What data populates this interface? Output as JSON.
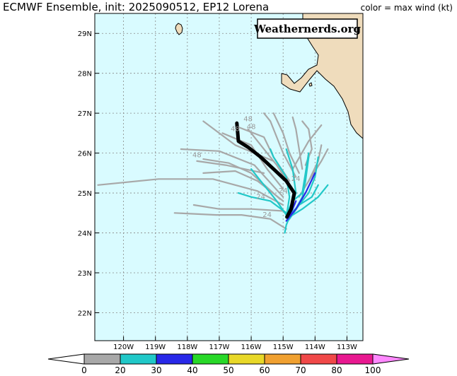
{
  "header": {
    "title": "ECMWF Ensemble, init: 2025090512, EP12 Lorena",
    "legend_note": "color = max wind (kt)"
  },
  "brand": "Weathernerds.org",
  "colors": {
    "ocean": "#d9fbff",
    "land": "#efdcbc",
    "track_mean": "#000000",
    "member_weak": "#a8a8a8",
    "member_ts": "#22c8c8",
    "member_cat1": "#2828e8"
  },
  "map": {
    "lon_range": [
      -120.9,
      -112.5
    ],
    "lat_range": [
      21.3,
      29.5
    ],
    "lon_ticks": [
      {
        "value": -120,
        "label": "120W"
      },
      {
        "value": -119,
        "label": "119W"
      },
      {
        "value": -118,
        "label": "118W"
      },
      {
        "value": -117,
        "label": "117W"
      },
      {
        "value": -116,
        "label": "116W"
      },
      {
        "value": -115,
        "label": "115W"
      },
      {
        "value": -114,
        "label": "114W"
      },
      {
        "value": -113,
        "label": "113W"
      }
    ],
    "lat_ticks": [
      {
        "value": 22,
        "label": "22N"
      },
      {
        "value": 23,
        "label": "23N"
      },
      {
        "value": 24,
        "label": "24N"
      },
      {
        "value": 25,
        "label": "25N"
      },
      {
        "value": 26,
        "label": "26N"
      },
      {
        "value": 27,
        "label": "27N"
      },
      {
        "value": 28,
        "label": "28N"
      },
      {
        "value": 29,
        "label": "29N"
      }
    ],
    "hour_labels": [
      {
        "text": "48",
        "lon": -116.1,
        "lat": 26.8
      },
      {
        "text": "48",
        "lon": -116.0,
        "lat": 26.6
      },
      {
        "text": "48",
        "lon": -116.5,
        "lat": 26.55
      },
      {
        "text": "48",
        "lon": -117.7,
        "lat": 25.9
      },
      {
        "text": "24",
        "lon": -114.6,
        "lat": 25.3
      },
      {
        "text": "24",
        "lon": -115.0,
        "lat": 25.0
      },
      {
        "text": "24",
        "lon": -115.7,
        "lat": 24.85
      },
      {
        "text": "24",
        "lon": -115.5,
        "lat": 24.4
      }
    ]
  },
  "colorbar": {
    "labels": [
      "0",
      "20",
      "30",
      "40",
      "50",
      "60",
      "70",
      "80",
      "100"
    ],
    "colors": [
      "#a8a8a8",
      "#20c8c8",
      "#2828e8",
      "#28d828",
      "#e8d828",
      "#f0a030",
      "#f04848",
      "#e81890"
    ],
    "under_color": "#ffffff",
    "over_color": "#ff88ff"
  },
  "chart_data": {
    "type": "map-tracks",
    "mean_track": [
      [
        -114.88,
        24.4
      ],
      [
        -114.75,
        24.6
      ],
      [
        -114.65,
        25.0
      ],
      [
        -114.9,
        25.3
      ],
      [
        -115.3,
        25.6
      ],
      [
        -115.7,
        25.9
      ],
      [
        -116.1,
        26.15
      ],
      [
        -116.4,
        26.3
      ],
      [
        -116.45,
        26.75
      ]
    ],
    "members": [
      {
        "intensity": "weak",
        "points": [
          [
            -114.9,
            24.1
          ],
          [
            -115.4,
            24.35
          ],
          [
            -116.3,
            24.45
          ],
          [
            -117.1,
            24.45
          ],
          [
            -118.4,
            24.5
          ]
        ]
      },
      {
        "intensity": "weak",
        "points": [
          [
            -115.0,
            24.55
          ],
          [
            -116.0,
            24.6
          ],
          [
            -117.0,
            24.6
          ],
          [
            -117.8,
            24.7
          ]
        ]
      },
      {
        "intensity": "weak",
        "points": [
          [
            -115.0,
            24.7
          ],
          [
            -115.8,
            25.05
          ],
          [
            -117.2,
            25.35
          ],
          [
            -118.9,
            25.35
          ],
          [
            -120.8,
            25.2
          ]
        ]
      },
      {
        "intensity": "weak",
        "points": [
          [
            -115.0,
            24.8
          ],
          [
            -115.8,
            25.3
          ],
          [
            -116.5,
            25.55
          ],
          [
            -117.5,
            25.5
          ]
        ]
      },
      {
        "intensity": "weak",
        "points": [
          [
            -115.1,
            24.85
          ],
          [
            -116.0,
            25.5
          ],
          [
            -116.7,
            25.75
          ],
          [
            -117.5,
            25.85
          ]
        ]
      },
      {
        "intensity": "weak",
        "points": [
          [
            -115.0,
            24.9
          ],
          [
            -115.9,
            25.7
          ],
          [
            -117.0,
            26.05
          ],
          [
            -118.2,
            26.1
          ]
        ]
      },
      {
        "intensity": "weak",
        "points": [
          [
            -115.0,
            25.1
          ],
          [
            -115.5,
            25.6
          ],
          [
            -116.0,
            26.2
          ],
          [
            -116.9,
            26.5
          ]
        ]
      },
      {
        "intensity": "weak",
        "points": [
          [
            -114.8,
            25.2
          ],
          [
            -115.2,
            25.7
          ],
          [
            -115.8,
            26.3
          ],
          [
            -116.1,
            26.6
          ]
        ]
      },
      {
        "intensity": "weak",
        "points": [
          [
            -114.8,
            25.3
          ],
          [
            -115.3,
            25.9
          ],
          [
            -115.6,
            26.4
          ],
          [
            -116.4,
            26.65
          ]
        ]
      },
      {
        "intensity": "weak",
        "points": [
          [
            -114.6,
            25.4
          ],
          [
            -115.0,
            26.0
          ],
          [
            -115.4,
            26.8
          ],
          [
            -115.6,
            27.0
          ]
        ]
      },
      {
        "intensity": "weak",
        "points": [
          [
            -114.5,
            25.5
          ],
          [
            -114.8,
            26.0
          ],
          [
            -115.0,
            26.5
          ],
          [
            -115.3,
            27.0
          ]
        ]
      },
      {
        "intensity": "weak",
        "points": [
          [
            -114.4,
            25.6
          ],
          [
            -114.5,
            26.1
          ],
          [
            -114.6,
            26.6
          ],
          [
            -114.7,
            26.9
          ]
        ]
      },
      {
        "intensity": "weak",
        "points": [
          [
            -114.3,
            25.7
          ],
          [
            -114.1,
            26.1
          ],
          [
            -114.2,
            26.6
          ],
          [
            -114.4,
            26.8
          ]
        ]
      },
      {
        "intensity": "weak",
        "points": [
          [
            -114.2,
            25.3
          ],
          [
            -113.9,
            25.8
          ],
          [
            -113.8,
            26.2
          ]
        ]
      },
      {
        "intensity": "weak",
        "points": [
          [
            -115.3,
            25.8
          ],
          [
            -116.5,
            26.2
          ],
          [
            -117.5,
            26.8
          ]
        ]
      },
      {
        "intensity": "weak",
        "points": [
          [
            -115.6,
            25.5
          ],
          [
            -116.8,
            25.7
          ],
          [
            -117.7,
            25.8
          ]
        ]
      },
      {
        "intensity": "weak",
        "points": [
          [
            -114.5,
            24.9
          ],
          [
            -114.2,
            25.3
          ],
          [
            -113.8,
            25.8
          ],
          [
            -113.6,
            26.1
          ]
        ]
      },
      {
        "intensity": "weak",
        "points": [
          [
            -114.7,
            25.6
          ],
          [
            -114.2,
            26.3
          ],
          [
            -113.8,
            26.7
          ]
        ]
      },
      {
        "intensity": "ts",
        "points": [
          [
            -114.85,
            24.3
          ],
          [
            -114.6,
            24.6
          ],
          [
            -114.4,
            24.9
          ],
          [
            -114.3,
            25.3
          ],
          [
            -114.2,
            25.9
          ]
        ]
      },
      {
        "intensity": "ts",
        "points": [
          [
            -114.8,
            24.35
          ],
          [
            -114.5,
            24.7
          ],
          [
            -114.2,
            25.0
          ],
          [
            -114.0,
            25.4
          ],
          [
            -113.9,
            25.9
          ]
        ]
      },
      {
        "intensity": "ts",
        "points": [
          [
            -114.8,
            24.4
          ],
          [
            -114.4,
            24.6
          ],
          [
            -113.9,
            24.9
          ],
          [
            -113.6,
            25.2
          ]
        ]
      },
      {
        "intensity": "ts",
        "points": [
          [
            -114.9,
            24.4
          ],
          [
            -114.8,
            24.9
          ],
          [
            -114.9,
            25.4
          ],
          [
            -115.3,
            25.9
          ],
          [
            -115.4,
            26.1
          ]
        ]
      },
      {
        "intensity": "ts",
        "points": [
          [
            -114.9,
            24.45
          ],
          [
            -115.2,
            24.8
          ],
          [
            -115.6,
            25.2
          ],
          [
            -116.0,
            25.6
          ]
        ]
      },
      {
        "intensity": "ts",
        "points": [
          [
            -114.9,
            24.5
          ],
          [
            -115.4,
            24.8
          ],
          [
            -116.0,
            24.9
          ],
          [
            -116.4,
            25.0
          ]
        ]
      },
      {
        "intensity": "ts",
        "points": [
          [
            -114.9,
            24.45
          ],
          [
            -114.7,
            24.8
          ],
          [
            -114.4,
            25.0
          ],
          [
            -114.3,
            25.5
          ],
          [
            -114.2,
            26.0
          ]
        ]
      },
      {
        "intensity": "ts",
        "points": [
          [
            -114.95,
            24.0
          ],
          [
            -114.9,
            24.2
          ],
          [
            -114.8,
            24.4
          ]
        ]
      },
      {
        "intensity": "ts",
        "points": [
          [
            -114.8,
            24.5
          ],
          [
            -114.6,
            25.0
          ],
          [
            -114.7,
            25.6
          ],
          [
            -114.9,
            26.1
          ]
        ]
      },
      {
        "intensity": "ts",
        "points": [
          [
            -114.85,
            24.4
          ],
          [
            -114.5,
            24.7
          ],
          [
            -114.1,
            24.9
          ],
          [
            -113.9,
            25.2
          ]
        ]
      },
      {
        "intensity": "cat1",
        "points": [
          [
            -114.9,
            24.3
          ],
          [
            -114.6,
            24.6
          ],
          [
            -114.3,
            25.0
          ],
          [
            -114.0,
            25.5
          ]
        ]
      },
      {
        "intensity": "cat1",
        "points": [
          [
            -114.85,
            24.35
          ],
          [
            -114.7,
            24.6
          ],
          [
            -114.6,
            24.8
          ]
        ]
      }
    ]
  }
}
